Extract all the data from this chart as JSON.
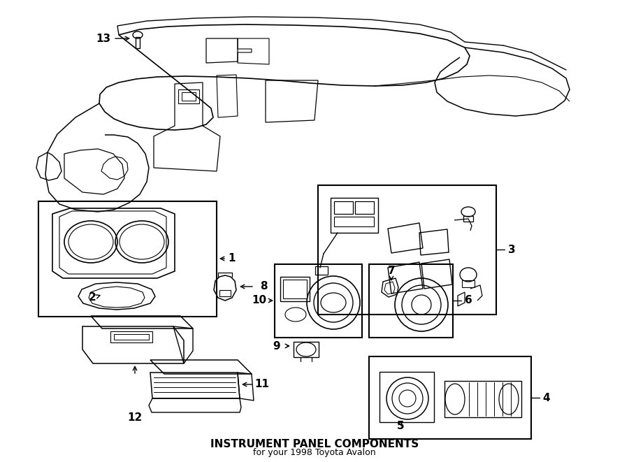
{
  "title": "INSTRUMENT PANEL COMPONENTS",
  "subtitle": "for your 1998 Toyota Avalon",
  "bg_color": "#ffffff",
  "line_color": "#000000",
  "text_color": "#000000",
  "fig_width": 9.0,
  "fig_height": 6.61,
  "dpi": 100
}
